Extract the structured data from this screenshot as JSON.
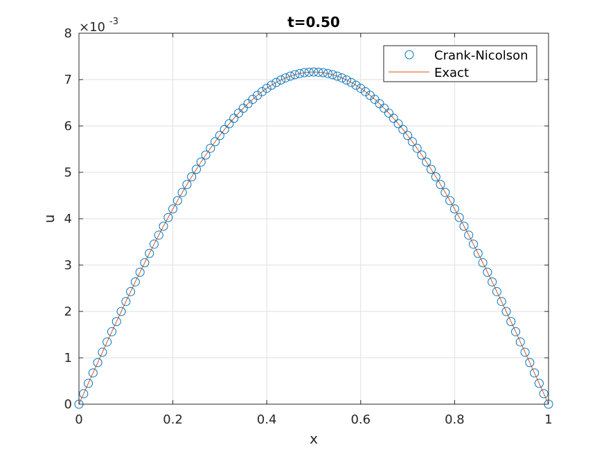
{
  "chart_data": {
    "type": "line",
    "title": "t=0.50",
    "xlabel": "x",
    "ylabel": "u",
    "xlim": [
      0,
      1
    ],
    "ylim": [
      0,
      8
    ],
    "y_scale_exponent_label": "×10",
    "y_scale_exponent_value": "-3",
    "xticks": [
      "0",
      "0.2",
      "0.4",
      "0.6",
      "0.8",
      "1"
    ],
    "yticks": [
      "0",
      "1",
      "2",
      "3",
      "4",
      "5",
      "6",
      "7",
      "8"
    ],
    "grid": true,
    "legend_position": "top-right",
    "peak_value": 7.163,
    "n_intervals": 100,
    "series": [
      {
        "name": "Crank-Nicolson",
        "marker": "open-circle",
        "color": "#0072BD"
      },
      {
        "name": "Exact",
        "marker": "line",
        "color": "#D95319"
      }
    ]
  }
}
